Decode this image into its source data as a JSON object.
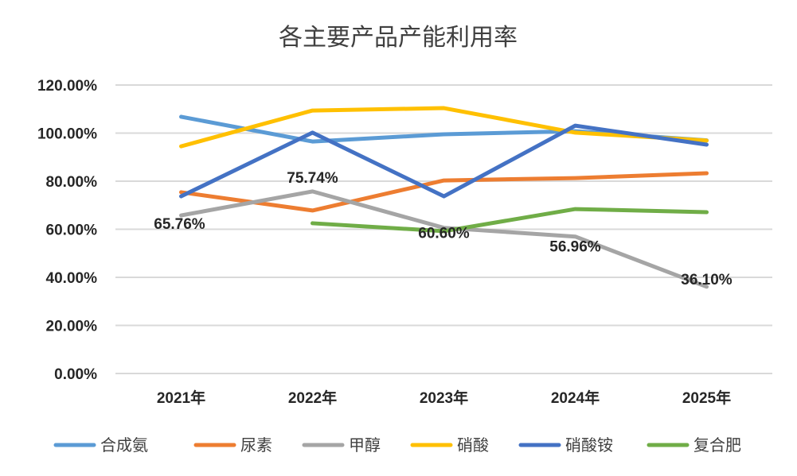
{
  "chart_data": {
    "type": "line",
    "title": "各主要产品产能利用率",
    "categories": [
      "2021年",
      "2022年",
      "2023年",
      "2024年",
      "2025年"
    ],
    "ylim": [
      0,
      120
    ],
    "yticks": [
      "0.00%",
      "20.00%",
      "40.00%",
      "60.00%",
      "80.00%",
      "100.00%",
      "120.00%"
    ],
    "grid": true,
    "legend_position": "bottom",
    "series": [
      {
        "name": "合成氨",
        "color": "#5B9BD5",
        "values": [
          106.8,
          96.5,
          99.5,
          100.8,
          97.0
        ]
      },
      {
        "name": "尿素",
        "color": "#ED7D31",
        "values": [
          75.4,
          67.8,
          80.3,
          81.3,
          83.3
        ]
      },
      {
        "name": "甲醇",
        "color": "#A5A5A5",
        "values": [
          65.76,
          75.74,
          60.6,
          56.96,
          36.1
        ],
        "labels": [
          "65.76%",
          "75.74%",
          "60.60%",
          "56.96%",
          "36.10%"
        ]
      },
      {
        "name": "硝酸",
        "color": "#FFC000",
        "values": [
          94.5,
          109.4,
          110.4,
          100.2,
          96.9
        ]
      },
      {
        "name": "硝酸铵",
        "color": "#4472C4",
        "values": [
          73.7,
          100.2,
          73.7,
          103.1,
          95.2
        ]
      },
      {
        "name": "复合肥",
        "color": "#70AD47",
        "values": [
          null,
          62.5,
          59.2,
          68.4,
          67.1
        ]
      }
    ]
  }
}
